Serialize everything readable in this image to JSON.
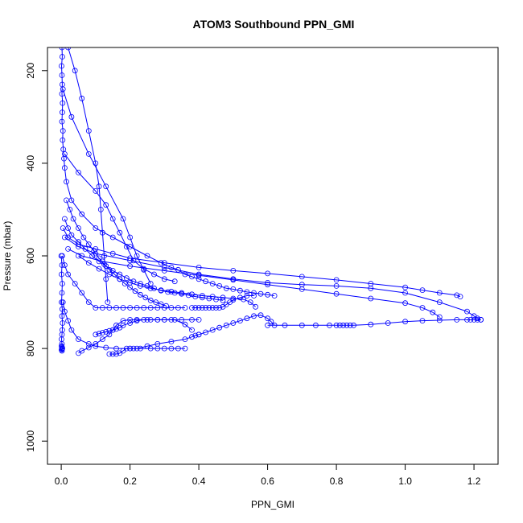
{
  "chart_data": {
    "type": "scatter",
    "title": "ATOM3 Southbound PPN_GMI",
    "xlabel": "PPN_GMI",
    "ylabel": "Pressure (mbar)",
    "xlim": [
      -0.04,
      1.27
    ],
    "ylim": [
      1050,
      150
    ],
    "y_reversed": true,
    "x_ticks": [
      "0.0",
      "0.2",
      "0.4",
      "0.6",
      "0.8",
      "1.0",
      "1.2"
    ],
    "y_ticks": [
      "200",
      "400",
      "600",
      "800",
      "1000"
    ],
    "grid": false,
    "series_color": "#0000ff",
    "marker": "open-circle",
    "line": true,
    "series": [
      {
        "x": [
          0.002,
          0.003,
          0.001,
          0.002,
          0.003,
          0.002,
          0.004,
          0.003,
          0.002,
          0.005,
          0.004,
          0.006,
          0.008,
          0.01,
          0.015,
          0.03,
          0.06,
          0.1,
          0.15,
          0.2,
          0.25,
          0.29,
          0.32,
          0.34,
          0.36,
          0.38,
          0.4,
          0.42,
          0.44,
          0.46,
          0.48,
          0.5,
          0.52,
          0.54,
          0.56,
          0.58,
          0.6,
          0.62
        ],
        "y": [
          150,
          170,
          190,
          210,
          230,
          250,
          270,
          290,
          310,
          330,
          350,
          370,
          390,
          410,
          440,
          480,
          510,
          540,
          560,
          580,
          600,
          615,
          625,
          630,
          640,
          645,
          650,
          655,
          660,
          665,
          670,
          672,
          675,
          678,
          680,
          682,
          684,
          686
        ]
      },
      {
        "x": [
          0.005,
          0.02,
          0.05,
          0.1,
          0.15,
          0.2,
          0.3,
          0.4,
          0.5,
          0.6,
          0.7,
          0.8,
          0.9,
          1.0,
          1.05,
          1.1,
          1.15,
          1.16
        ],
        "y": [
          540,
          560,
          575,
          585,
          595,
          605,
          615,
          625,
          632,
          638,
          645,
          652,
          660,
          668,
          674,
          680,
          685,
          688
        ]
      },
      {
        "x": [
          0.01,
          0.05,
          0.1,
          0.2,
          0.3,
          0.4,
          0.5,
          0.6,
          0.7,
          0.8,
          0.9,
          1.0,
          1.1,
          1.18,
          1.2,
          1.21,
          1.22,
          1.22
        ],
        "y": [
          560,
          580,
          595,
          610,
          625,
          640,
          650,
          658,
          662,
          665,
          670,
          680,
          700,
          720,
          730,
          735,
          738,
          738
        ]
      },
      {
        "x": [
          0.02,
          0.06,
          0.12,
          0.2,
          0.3,
          0.4,
          0.5,
          0.6,
          0.7,
          0.8,
          0.9,
          1.0,
          1.05,
          1.08,
          1.1
        ],
        "y": [
          585,
          600,
          612,
          622,
          632,
          642,
          652,
          662,
          672,
          682,
          692,
          702,
          712,
          722,
          732
        ]
      },
      {
        "x": [
          0.6,
          0.65,
          0.7,
          0.74,
          0.78,
          0.8,
          0.81,
          0.82,
          0.83,
          0.84,
          0.85,
          0.9,
          0.95,
          1.0,
          1.05,
          1.1,
          1.15,
          1.18,
          1.19,
          1.2,
          1.21,
          1.22
        ],
        "y": [
          750,
          750,
          750,
          750,
          750,
          750,
          750,
          750,
          750,
          750,
          750,
          748,
          745,
          742,
          740,
          739,
          738,
          738,
          738,
          738,
          738,
          738
        ]
      },
      {
        "x": [
          0.003,
          0.01,
          0.02,
          0.04,
          0.06,
          0.08,
          0.1,
          0.12,
          0.14,
          0.16,
          0.18,
          0.2,
          0.22,
          0.24,
          0.26,
          0.28,
          0.3,
          0.32,
          0.34,
          0.36
        ],
        "y": [
          600,
          620,
          640,
          660,
          680,
          700,
          712,
          712,
          712,
          712,
          712,
          712,
          712,
          712,
          712,
          712,
          712,
          712,
          712,
          712
        ]
      },
      {
        "x": [
          0.38,
          0.39,
          0.4,
          0.41,
          0.42,
          0.43,
          0.44,
          0.45,
          0.46,
          0.47,
          0.48,
          0.49,
          0.5,
          0.52,
          0.54,
          0.56
        ],
        "y": [
          712,
          712,
          712,
          712,
          712,
          712,
          712,
          712,
          712,
          710,
          705,
          700,
          695,
          690,
          686,
          686
        ]
      },
      {
        "x": [
          0.005,
          0.01,
          0.02,
          0.03,
          0.05,
          0.08,
          0.1,
          0.13,
          0.16,
          0.2,
          0.23,
          0.26,
          0.28,
          0.3,
          0.32,
          0.34,
          0.36
        ],
        "y": [
          700,
          720,
          740,
          760,
          780,
          790,
          795,
          798,
          800,
          800,
          800,
          800,
          800,
          800,
          800,
          800,
          800
        ]
      },
      {
        "x": [
          0.05,
          0.06,
          0.08,
          0.1,
          0.12,
          0.14,
          0.15,
          0.16,
          0.18,
          0.2,
          0.22,
          0.25,
          0.28,
          0.3,
          0.32,
          0.35,
          0.38,
          0.4
        ],
        "y": [
          810,
          805,
          798,
          790,
          780,
          770,
          760,
          750,
          740,
          738,
          738,
          738,
          738,
          738,
          738,
          738,
          738,
          738
        ]
      },
      {
        "x": [
          0.14,
          0.15,
          0.16,
          0.17,
          0.18,
          0.19,
          0.2,
          0.21,
          0.22,
          0.25,
          0.28,
          0.32,
          0.36,
          0.38,
          0.39,
          0.4
        ],
        "y": [
          812,
          812,
          812,
          810,
          805,
          800,
          800,
          800,
          800,
          795,
          790,
          785,
          780,
          775,
          772,
          770
        ]
      },
      {
        "x": [
          0.1,
          0.11,
          0.12,
          0.13,
          0.14,
          0.15,
          0.16,
          0.17,
          0.18,
          0.2,
          0.22,
          0.24,
          0.26,
          0.28,
          0.3,
          0.33,
          0.36,
          0.38
        ],
        "y": [
          770,
          768,
          766,
          764,
          762,
          760,
          758,
          755,
          750,
          745,
          740,
          738,
          738,
          738,
          738,
          738,
          748,
          760
        ]
      },
      {
        "x": [
          0.4,
          0.42,
          0.44,
          0.46,
          0.48,
          0.5,
          0.52,
          0.54,
          0.56,
          0.58,
          0.6,
          0.61,
          0.62
        ],
        "y": [
          770,
          765,
          760,
          755,
          750,
          745,
          740,
          735,
          730,
          728,
          735,
          742,
          750
        ]
      },
      {
        "x": [
          0.01,
          0.02,
          0.03,
          0.05,
          0.07,
          0.09,
          0.11,
          0.13,
          0.15,
          0.17,
          0.19,
          0.21,
          0.23,
          0.25,
          0.27,
          0.29,
          0.31,
          0.33,
          0.35,
          0.37,
          0.39,
          0.41,
          0.43,
          0.45,
          0.47
        ],
        "y": [
          520,
          540,
          555,
          570,
          585,
          600,
          612,
          622,
          632,
          640,
          648,
          655,
          660,
          665,
          670,
          675,
          678,
          680,
          682,
          685,
          688,
          690,
          692,
          694,
          696
        ]
      },
      {
        "x": [
          0.0,
          0.002,
          0.001,
          0.003,
          0.002,
          0.001,
          0.003,
          0.002,
          0.004,
          0.003,
          0.002,
          0.001,
          0.002,
          0.003,
          0.002,
          0.001,
          0.002,
          0.003,
          0.002,
          0.001
        ],
        "y": [
          600,
          620,
          640,
          660,
          680,
          700,
          715,
          730,
          745,
          760,
          770,
          780,
          790,
          800,
          805,
          803,
          801,
          799,
          797,
          795
        ]
      },
      {
        "x": [
          0.015,
          0.025,
          0.035,
          0.05,
          0.065,
          0.08,
          0.095,
          0.11,
          0.125,
          0.14,
          0.155,
          0.17,
          0.185,
          0.2,
          0.215,
          0.23,
          0.245,
          0.26,
          0.275,
          0.29,
          0.305
        ],
        "y": [
          480,
          500,
          520,
          540,
          560,
          575,
          590,
          605,
          618,
          630,
          640,
          650,
          660,
          668,
          676,
          684,
          690,
          696,
          700,
          704,
          708
        ]
      },
      {
        "x": [
          0.05,
          0.08,
          0.11,
          0.14,
          0.17,
          0.2,
          0.23,
          0.26,
          0.29,
          0.32,
          0.35,
          0.38,
          0.41,
          0.44,
          0.47,
          0.5,
          0.53,
          0.55,
          0.565
        ],
        "y": [
          600,
          615,
          628,
          640,
          650,
          658,
          665,
          670,
          674,
          677,
          680,
          683,
          686,
          688,
          690,
          692,
          694,
          700,
          710
        ]
      },
      {
        "x": [
          0.01,
          0.05,
          0.1,
          0.13,
          0.15,
          0.17,
          0.19,
          0.21,
          0.24,
          0.27,
          0.3,
          0.33
        ],
        "y": [
          380,
          420,
          460,
          490,
          520,
          550,
          580,
          610,
          628,
          640,
          650,
          655
        ]
      },
      {
        "x": [
          0.02,
          0.04,
          0.06,
          0.08,
          0.1,
          0.11,
          0.115,
          0.12,
          0.125,
          0.13,
          0.135
        ],
        "y": [
          150,
          200,
          260,
          330,
          400,
          450,
          500,
          550,
          600,
          650,
          700
        ]
      },
      {
        "x": [
          0.005,
          0.03,
          0.08,
          0.13,
          0.18,
          0.2,
          0.22,
          0.24,
          0.26
        ],
        "y": [
          240,
          300,
          380,
          450,
          520,
          560,
          600,
          630,
          660
        ]
      }
    ]
  }
}
